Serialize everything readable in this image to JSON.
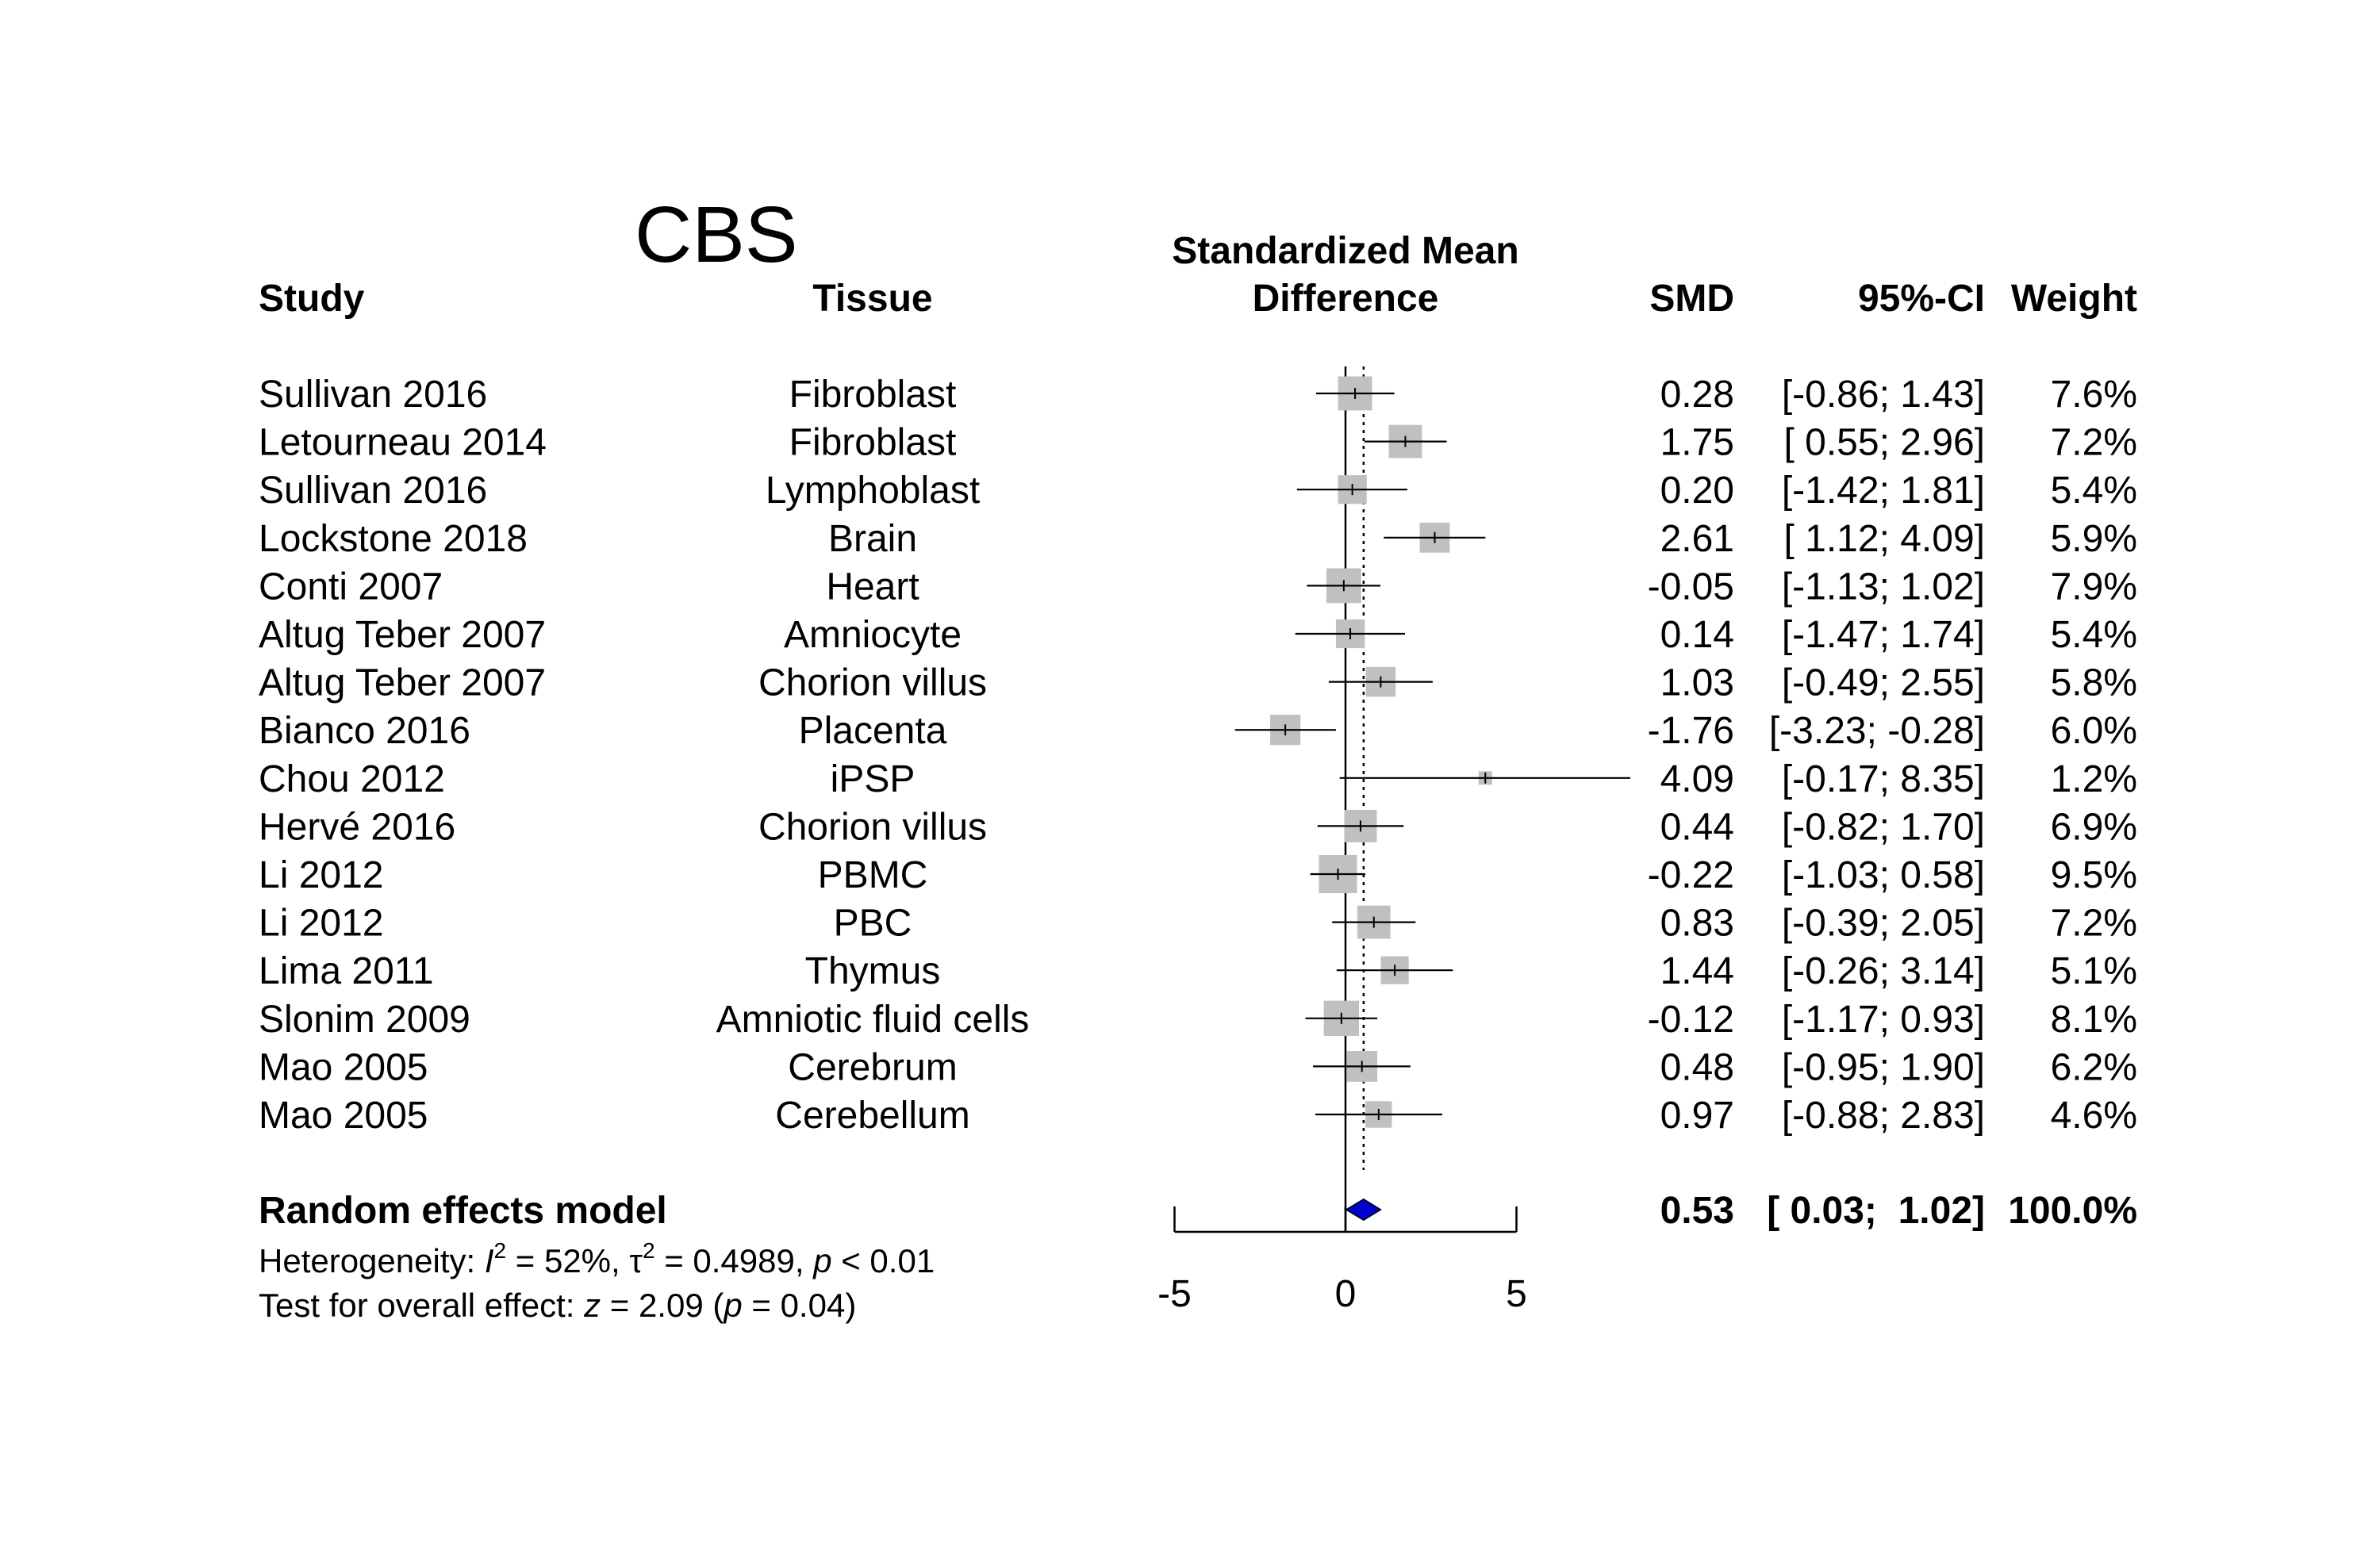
{
  "chart_data": {
    "type": "forest",
    "title": "CBS",
    "columns": {
      "study": "Study",
      "tissue": "Tissue",
      "effect_line1": "Standardized Mean",
      "effect_line2": "Difference",
      "smd": "SMD",
      "ci": "95%-CI",
      "weight": "Weight"
    },
    "studies": [
      {
        "study": "Sullivan 2016",
        "tissue": "Fibroblast",
        "smd": 0.28,
        "lower": -0.86,
        "upper": 1.43,
        "smd_text": "0.28",
        "ci_text": "[-0.86;  1.43]",
        "weight_text": "7.6%",
        "weight": 7.6
      },
      {
        "study": "Letourneau 2014",
        "tissue": "Fibroblast",
        "smd": 1.75,
        "lower": 0.55,
        "upper": 2.96,
        "smd_text": "1.75",
        "ci_text": "[ 0.55;  2.96]",
        "weight_text": "7.2%",
        "weight": 7.2
      },
      {
        "study": "Sullivan 2016",
        "tissue": "Lymphoblast",
        "smd": 0.2,
        "lower": -1.42,
        "upper": 1.81,
        "smd_text": "0.20",
        "ci_text": "[-1.42;  1.81]",
        "weight_text": "5.4%",
        "weight": 5.4
      },
      {
        "study": "Lockstone 2018",
        "tissue": "Brain",
        "smd": 2.61,
        "lower": 1.12,
        "upper": 4.09,
        "smd_text": "2.61",
        "ci_text": "[ 1.12;  4.09]",
        "weight_text": "5.9%",
        "weight": 5.9
      },
      {
        "study": "Conti 2007",
        "tissue": "Heart",
        "smd": -0.05,
        "lower": -1.13,
        "upper": 1.02,
        "smd_text": "-0.05",
        "ci_text": "[-1.13;  1.02]",
        "weight_text": "7.9%",
        "weight": 7.9
      },
      {
        "study": "Altug Teber 2007",
        "tissue": "Amniocyte",
        "smd": 0.14,
        "lower": -1.47,
        "upper": 1.74,
        "smd_text": "0.14",
        "ci_text": "[-1.47;  1.74]",
        "weight_text": "5.4%",
        "weight": 5.4
      },
      {
        "study": "Altug Teber 2007",
        "tissue": "Chorion villus",
        "smd": 1.03,
        "lower": -0.49,
        "upper": 2.55,
        "smd_text": "1.03",
        "ci_text": "[-0.49;  2.55]",
        "weight_text": "5.8%",
        "weight": 5.8
      },
      {
        "study": "Bianco 2016",
        "tissue": "Placenta",
        "smd": -1.76,
        "lower": -3.23,
        "upper": -0.28,
        "smd_text": "-1.76",
        "ci_text": "[-3.23; -0.28]",
        "weight_text": "6.0%",
        "weight": 6.0
      },
      {
        "study": "Chou 2012",
        "tissue": "iPSP",
        "smd": 4.09,
        "lower": -0.17,
        "upper": 8.35,
        "smd_text": "4.09",
        "ci_text": "[-0.17;  8.35]",
        "weight_text": "1.2%",
        "weight": 1.2
      },
      {
        "study": "Hervé 2016",
        "tissue": "Chorion villus",
        "smd": 0.44,
        "lower": -0.82,
        "upper": 1.7,
        "smd_text": "0.44",
        "ci_text": "[-0.82;  1.70]",
        "weight_text": "6.9%",
        "weight": 6.9
      },
      {
        "study": "Li 2012",
        "tissue": "PBMC",
        "smd": -0.22,
        "lower": -1.03,
        "upper": 0.58,
        "smd_text": "-0.22",
        "ci_text": "[-1.03;  0.58]",
        "weight_text": "9.5%",
        "weight": 9.5
      },
      {
        "study": "Li 2012",
        "tissue": "PBC",
        "smd": 0.83,
        "lower": -0.39,
        "upper": 2.05,
        "smd_text": "0.83",
        "ci_text": "[-0.39;  2.05]",
        "weight_text": "7.2%",
        "weight": 7.2
      },
      {
        "study": "Lima 2011",
        "tissue": "Thymus",
        "smd": 1.44,
        "lower": -0.26,
        "upper": 3.14,
        "smd_text": "1.44",
        "ci_text": "[-0.26;  3.14]",
        "weight_text": "5.1%",
        "weight": 5.1
      },
      {
        "study": "Slonim 2009",
        "tissue": "Amniotic fluid cells",
        "smd": -0.12,
        "lower": -1.17,
        "upper": 0.93,
        "smd_text": "-0.12",
        "ci_text": "[-1.17;  0.93]",
        "weight_text": "8.1%",
        "weight": 8.1
      },
      {
        "study": "Mao 2005",
        "tissue": "Cerebrum",
        "smd": 0.48,
        "lower": -0.95,
        "upper": 1.9,
        "smd_text": "0.48",
        "ci_text": "[-0.95;  1.90]",
        "weight_text": "6.2%",
        "weight": 6.2
      },
      {
        "study": "Mao 2005",
        "tissue": "Cerebellum",
        "smd": 0.97,
        "lower": -0.88,
        "upper": 2.83,
        "smd_text": "0.97",
        "ci_text": "[-0.88;  2.83]",
        "weight_text": "4.6%",
        "weight": 4.6
      }
    ],
    "pooled": {
      "label": "Random effects model",
      "smd": 0.53,
      "lower": 0.03,
      "upper": 1.02,
      "smd_text": "0.53",
      "ci_text": "[ 0.03;  1.02]",
      "weight_text": "100.0%"
    },
    "heterogeneity": {
      "prefix": "Heterogeneity: ",
      "i2_symbol": "I",
      "i2_value": " = 52%, ",
      "tau_symbol": "τ",
      "tau_value": " = 0.4989, ",
      "p_symbol": "p",
      "p_value": " < 0.01"
    },
    "overall_test": {
      "prefix": "Test for overall effect: ",
      "z_symbol": "z",
      "z_value": " = 2.09 (",
      "p_symbol": "p",
      "p_value": " = 0.04)"
    },
    "x_axis": {
      "range": [
        -5,
        5
      ],
      "ticks": [
        -5,
        0,
        5
      ],
      "tick_labels": [
        "-5",
        "0",
        "5"
      ],
      "grid": false
    },
    "colors": {
      "square": "#c0c0c0",
      "line": "#000000",
      "diamond": "#0000cc",
      "diamond_stroke": "#000033"
    }
  }
}
